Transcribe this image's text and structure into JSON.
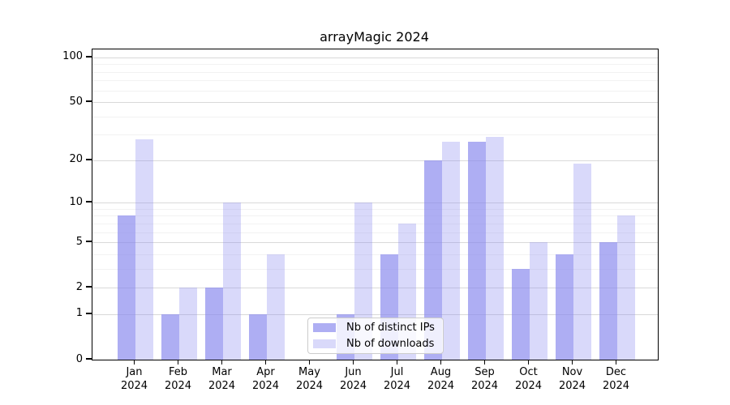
{
  "title": "arrayMagic 2024",
  "legend": {
    "items": [
      {
        "label": "Nb of distinct IPs"
      },
      {
        "label": "Nb of downloads"
      }
    ]
  },
  "chart_data": {
    "type": "bar",
    "title": "arrayMagic 2024",
    "categories": [
      "Jan",
      "Feb",
      "Mar",
      "Apr",
      "May",
      "Jun",
      "Jul",
      "Aug",
      "Sep",
      "Oct",
      "Nov",
      "Dec"
    ],
    "x_tick_line2": "2024",
    "series": [
      {
        "name": "Nb of distinct IPs",
        "color": "rgba(136,136,238,0.68)",
        "values": [
          8,
          1,
          2,
          1,
          0,
          1,
          4,
          20,
          27,
          3,
          4,
          5
        ]
      },
      {
        "name": "Nb of downloads",
        "color": "rgba(136,136,238,0.32)",
        "values": [
          28,
          2,
          10,
          4,
          0,
          10,
          7,
          27,
          29,
          5,
          19,
          8
        ]
      }
    ],
    "xlabel": "",
    "ylabel": "",
    "scale": "log1p",
    "ylim": [
      0,
      113
    ],
    "yticks": [
      0,
      1,
      2,
      5,
      10,
      20,
      50,
      100
    ],
    "minor_yticks": [
      3,
      4,
      6,
      7,
      8,
      9,
      30,
      40,
      60,
      70,
      80,
      90
    ],
    "grid": "horizontal",
    "legend_position": "lower center",
    "colors": {
      "major_grid": "#d9d9d9",
      "minor_grid": "#f2f2f2",
      "axis": "#000000",
      "text": "#000000"
    }
  }
}
